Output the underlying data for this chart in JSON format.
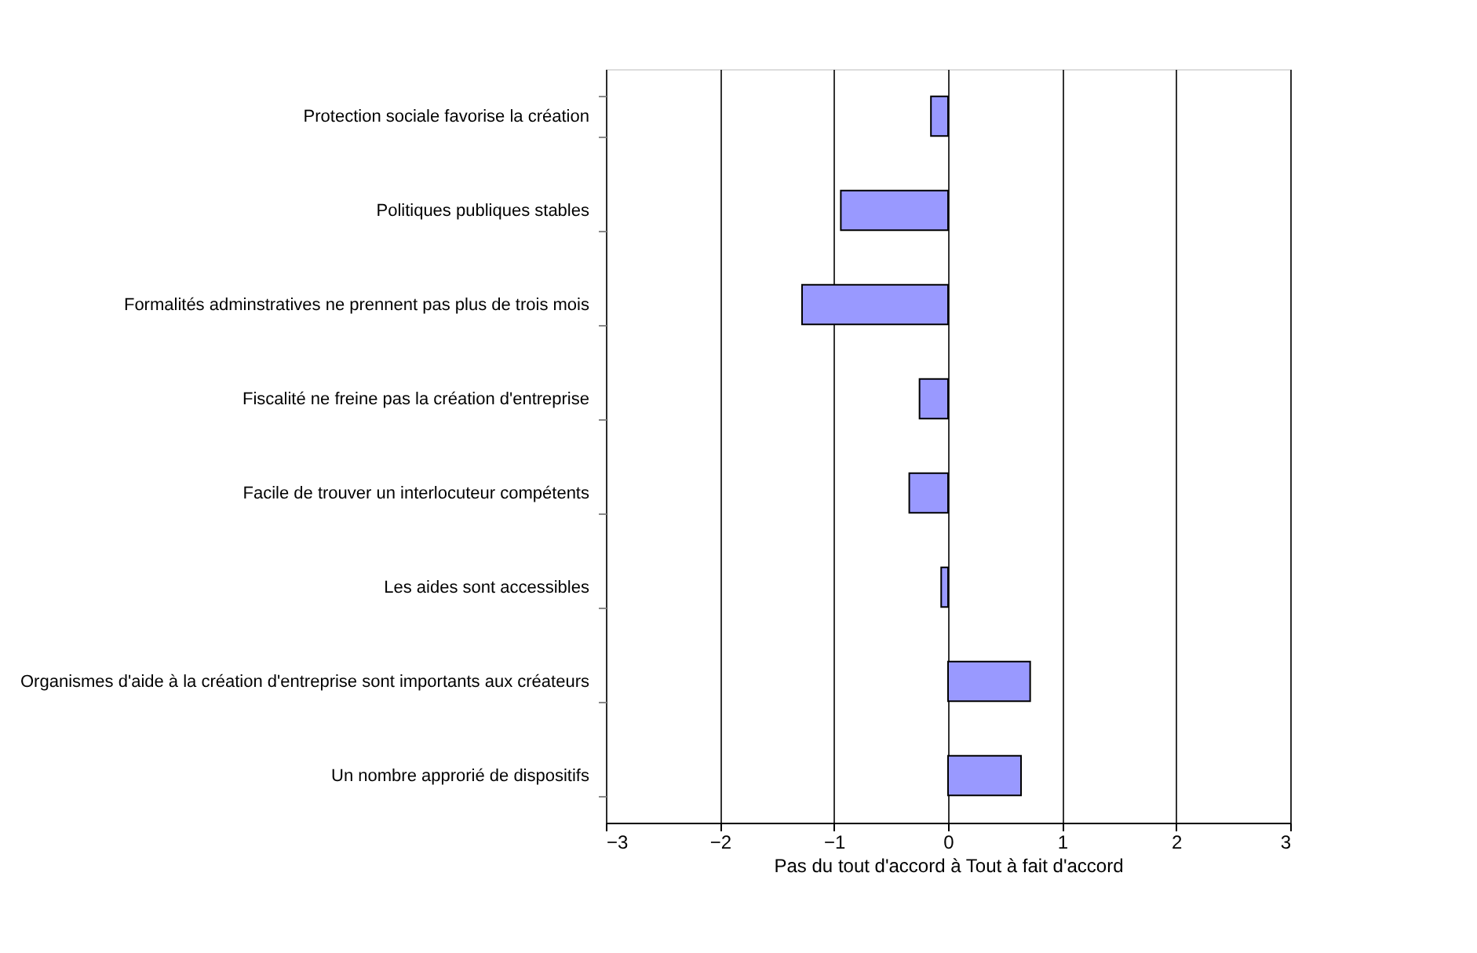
{
  "chart_data": {
    "type": "bar",
    "orientation": "horizontal",
    "categories": [
      "Protection sociale favorise la création",
      "Politiques publiques  stables",
      "Formalités adminstratives ne prennent pas plus de trois mois",
      "Fiscalité ne freine pas la création d'entreprise",
      "Facile de trouver un interlocuteur compétents ",
      "Les aides sont accessibles",
      "Organismes d'aide à la création d'entreprise sont importants aux créateurs",
      "Un nombre approrié de dispositifs"
    ],
    "values": [
      -0.15,
      -0.94,
      -1.28,
      -0.25,
      -0.34,
      -0.06,
      0.72,
      0.64
    ],
    "color": "#9999ff",
    "xlabel": "Pas du tout d'accord        à        Tout à fait d'accord",
    "xlim": [
      -3,
      3
    ],
    "xticks": [
      -3,
      -2,
      -1,
      0,
      1,
      2,
      3
    ],
    "grid": "x"
  }
}
